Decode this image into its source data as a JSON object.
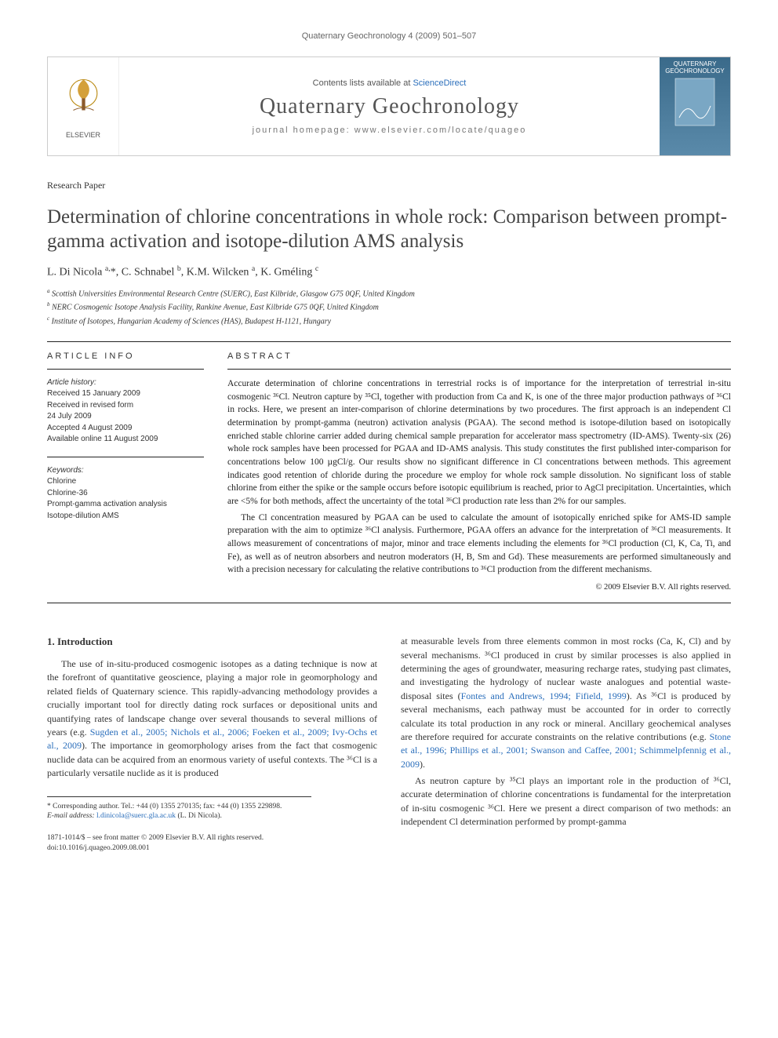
{
  "header": {
    "journal_line": "Quaternary Geochronology 4 (2009) 501–507"
  },
  "banner": {
    "contents_prefix": "Contents lists available at ",
    "contents_link": "ScienceDirect",
    "journal": "Quaternary Geochronology",
    "homepage_label": "journal homepage: ",
    "homepage_url": "www.elsevier.com/locate/quageo",
    "publisher_label": "ELSEVIER",
    "cover_label": "QUATERNARY GEOCHRONOLOGY"
  },
  "doc_type": "Research Paper",
  "title": "Determination of chlorine concentrations in whole rock: Comparison between prompt-gamma activation and isotope-dilution AMS analysis",
  "authors_html": "L. Di Nicola <sup>a,</sup>*, C. Schnabel <sup>b</sup>, K.M. Wilcken <sup>a</sup>, K. Gméling <sup>c</sup>",
  "affiliations": {
    "a": "Scottish Universities Environmental Research Centre (SUERC), East Kilbride, Glasgow G75 0QF, United Kingdom",
    "b": "NERC Cosmogenic Isotope Analysis Facility, Rankine Avenue, East Kilbride G75 0QF, United Kingdom",
    "c": "Institute of Isotopes, Hungarian Academy of Sciences (HAS), Budapest H-1121, Hungary"
  },
  "article_info": {
    "heading": "ARTICLE INFO",
    "history_label": "Article history:",
    "history": [
      "Received 15 January 2009",
      "Received in revised form",
      "24 July 2009",
      "Accepted 4 August 2009",
      "Available online 11 August 2009"
    ],
    "keywords_label": "Keywords:",
    "keywords": [
      "Chlorine",
      "Chlorine-36",
      "Prompt-gamma activation analysis",
      "Isotope-dilution AMS"
    ]
  },
  "abstract": {
    "heading": "ABSTRACT",
    "p1": "Accurate determination of chlorine concentrations in terrestrial rocks is of importance for the interpretation of terrestrial in-situ cosmogenic ³⁶Cl. Neutron capture by ³⁵Cl, together with production from Ca and K, is one of the three major production pathways of ³⁶Cl in rocks. Here, we present an inter-comparison of chlorine determinations by two procedures. The first approach is an independent Cl determination by prompt-gamma (neutron) activation analysis (PGAA). The second method is isotope-dilution based on isotopically enriched stable chlorine carrier added during chemical sample preparation for accelerator mass spectrometry (ID-AMS). Twenty-six (26) whole rock samples have been processed for PGAA and ID-AMS analysis. This study constitutes the first published inter-comparison for concentrations below 100 µgCl/g. Our results show no significant difference in Cl concentrations between methods. This agreement indicates good retention of chloride during the procedure we employ for whole rock sample dissolution. No significant loss of stable chlorine from either the spike or the sample occurs before isotopic equilibrium is reached, prior to AgCl precipitation. Uncertainties, which are <5% for both methods, affect the uncertainty of the total ³⁶Cl production rate less than 2% for our samples.",
    "p2": "The Cl concentration measured by PGAA can be used to calculate the amount of isotopically enriched spike for AMS-ID sample preparation with the aim to optimize ³⁶Cl analysis. Furthermore, PGAA offers an advance for the interpretation of ³⁶Cl measurements. It allows measurement of concentrations of major, minor and trace elements including the elements for ³⁶Cl production (Cl, K, Ca, Ti, and Fe), as well as of neutron absorbers and neutron moderators (H, B, Sm and Gd). These measurements are performed simultaneously and with a precision necessary for calculating the relative contributions to ³⁶Cl production from the different mechanisms.",
    "copyright": "© 2009 Elsevier B.V. All rights reserved."
  },
  "intro": {
    "heading": "1. Introduction",
    "col1_p1_a": "The use of in-situ-produced cosmogenic isotopes as a dating technique is now at the forefront of quantitative geoscience, playing a major role in geomorphology and related fields of Quaternary science. This rapidly-advancing methodology provides a crucially important tool for directly dating rock surfaces or depositional units and quantifying rates of landscape change over several thousands to several millions of years (e.g. ",
    "ref1": "Sugden et al., 2005; Nichols et al., 2006; Foeken et al., 2009; Ivy-Ochs et al., 2009",
    "col1_p1_b": "). The importance in geomorphology arises from the fact that cosmogenic nuclide data can be acquired from an enormous variety of useful contexts. The ³⁶Cl is a particularly versatile nuclide as it is produced",
    "col2_p1_a": "at measurable levels from three elements common in most rocks (Ca, K, Cl) and by several mechanisms. ³⁶Cl produced in crust by similar processes is also applied in determining the ages of groundwater, measuring recharge rates, studying past climates, and investigating the hydrology of nuclear waste analogues and potential waste-disposal sites (",
    "ref2": "Fontes and Andrews, 1994; Fifield, 1999",
    "col2_p1_b": "). As ³⁶Cl is produced by several mechanisms, each pathway must be accounted for in order to correctly calculate its total production in any rock or mineral. Ancillary geochemical analyses are therefore required for accurate constraints on the relative contributions (e.g. ",
    "ref3": "Stone et al., 1996; Phillips et al., 2001; Swanson and Caffee, 2001; Schimmelpfennig et al., 2009",
    "col2_p1_c": ").",
    "col2_p2": "As neutron capture by ³⁵Cl plays an important role in the production of ³⁶Cl, accurate determination of chlorine concentrations is fundamental for the interpretation of in-situ cosmogenic ³⁶Cl. Here we present a direct comparison of two methods: an independent Cl determination performed by prompt-gamma"
  },
  "footnote": {
    "corr": "* Corresponding author. Tel.: +44 (0) 1355 270135; fax: +44 (0) 1355 229898.",
    "email_label": "E-mail address:",
    "email": "l.dinicola@suerc.gla.ac.uk",
    "email_suffix": "(L. Di Nicola)."
  },
  "footer": {
    "line1": "1871-1014/$ – see front matter © 2009 Elsevier B.V. All rights reserved.",
    "line2": "doi:10.1016/j.quageo.2009.08.001"
  },
  "colors": {
    "link": "#2a6ebb",
    "text": "#333333",
    "rule": "#222222",
    "cover_bg_top": "#3a6a8a",
    "cover_bg_bottom": "#5a8aaa"
  }
}
